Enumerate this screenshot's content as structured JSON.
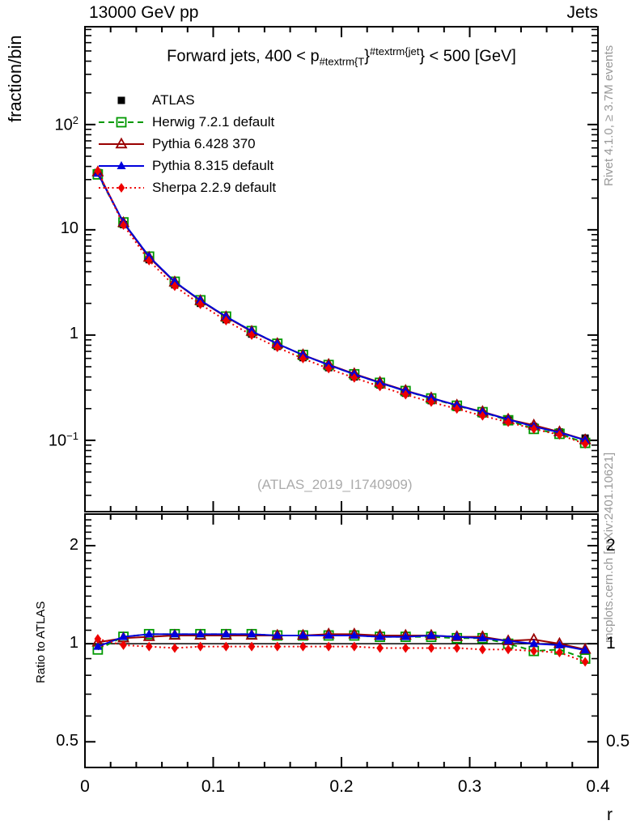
{
  "header": {
    "left": "13000 GeV pp",
    "right": "Jets"
  },
  "plot_title": {
    "t1": "Forward jets, 400 < p",
    "sub": "#textrm{T",
    "t2": "}",
    "sup": "#textrm{jet",
    "t3": "} < 500 [GeV]"
  },
  "watermark": "(ATLAS_2019_I1740909)",
  "side_notes": {
    "rivet": "Rivet 4.1.0, ≥ 3.7M events",
    "mcplots": "mcplots.cern.ch [arXiv:2401.10621]"
  },
  "chart_data": {
    "type": "line",
    "x": [
      0.01,
      0.03,
      0.05,
      0.07,
      0.09,
      0.11,
      0.13,
      0.15,
      0.17,
      0.19,
      0.21,
      0.23,
      0.25,
      0.27,
      0.29,
      0.31,
      0.33,
      0.35,
      0.37,
      0.39
    ],
    "x_axis": {
      "xlabel": "r",
      "xlim": [
        0,
        0.4
      ],
      "ticks": [
        {
          "label": "0",
          "value": 0
        },
        {
          "label": "0.1",
          "value": 0.1
        },
        {
          "label": "0.2",
          "value": 0.2
        },
        {
          "label": "0.3",
          "value": 0.3
        },
        {
          "label": "0.4",
          "value": 0.4
        }
      ],
      "minor_step": 0.02
    },
    "main_axis": {
      "ylabel": "fraction/bin",
      "yscale": "log",
      "ylim": [
        0.021,
        850
      ],
      "y_ticks": [
        {
          "base": "10",
          "exp": "2",
          "value": 100
        },
        {
          "base": "10",
          "exp": "",
          "value": 10
        },
        {
          "base": "1",
          "exp": "",
          "value": 1
        },
        {
          "base": "10",
          "exp": "−1",
          "value": 0.1
        }
      ]
    },
    "ratio_axis": {
      "ylabel": "Ratio to ATLAS",
      "yscale": "log",
      "ylim": [
        0.417,
        2.5
      ],
      "reference": 1,
      "y_ticks": [
        {
          "label": "2",
          "value": 2
        },
        {
          "label": "1",
          "value": 1
        },
        {
          "label": "0.5",
          "value": 0.5
        }
      ]
    },
    "series": [
      {
        "name": "ATLAS",
        "color": "#000000",
        "marker": "square-filled",
        "line": "none",
        "values": [
          35,
          11.2,
          5.2,
          3.0,
          2.0,
          1.4,
          1.02,
          0.78,
          0.61,
          0.49,
          0.4,
          0.335,
          0.28,
          0.238,
          0.205,
          0.178,
          0.155,
          0.135,
          0.12,
          0.105
        ]
      },
      {
        "name": "Herwig 7.2.1 default",
        "color": "#009900",
        "marker": "square-open",
        "line": "dashed",
        "ratio_to_atlas": [
          0.96,
          1.05,
          1.07,
          1.07,
          1.07,
          1.07,
          1.07,
          1.06,
          1.06,
          1.06,
          1.06,
          1.05,
          1.05,
          1.05,
          1.04,
          1.04,
          1.0,
          0.95,
          0.96,
          0.9
        ]
      },
      {
        "name": "Pythia 6.428 370",
        "color": "#990000",
        "marker": "triangle-open",
        "line": "solid",
        "ratio_to_atlas": [
          1.01,
          1.04,
          1.05,
          1.06,
          1.06,
          1.06,
          1.06,
          1.06,
          1.06,
          1.07,
          1.07,
          1.06,
          1.06,
          1.06,
          1.05,
          1.05,
          1.02,
          1.03,
          1.0,
          0.96
        ]
      },
      {
        "name": "Pythia 8.315 default",
        "color": "#0000dd",
        "marker": "triangle-filled",
        "line": "solid",
        "ratio_to_atlas": [
          0.98,
          1.05,
          1.07,
          1.07,
          1.07,
          1.07,
          1.07,
          1.06,
          1.06,
          1.06,
          1.06,
          1.05,
          1.05,
          1.06,
          1.05,
          1.04,
          1.02,
          1.0,
          0.99,
          0.955
        ]
      },
      {
        "name": "Sherpa 2.2.9 default",
        "color": "#ee0000",
        "marker": "diamond-filled",
        "line": "dotted",
        "ratio_to_atlas": [
          1.035,
          0.99,
          0.98,
          0.97,
          0.98,
          0.98,
          0.98,
          0.98,
          0.98,
          0.98,
          0.98,
          0.97,
          0.97,
          0.97,
          0.97,
          0.96,
          0.96,
          0.95,
          0.94,
          0.88
        ]
      }
    ]
  }
}
